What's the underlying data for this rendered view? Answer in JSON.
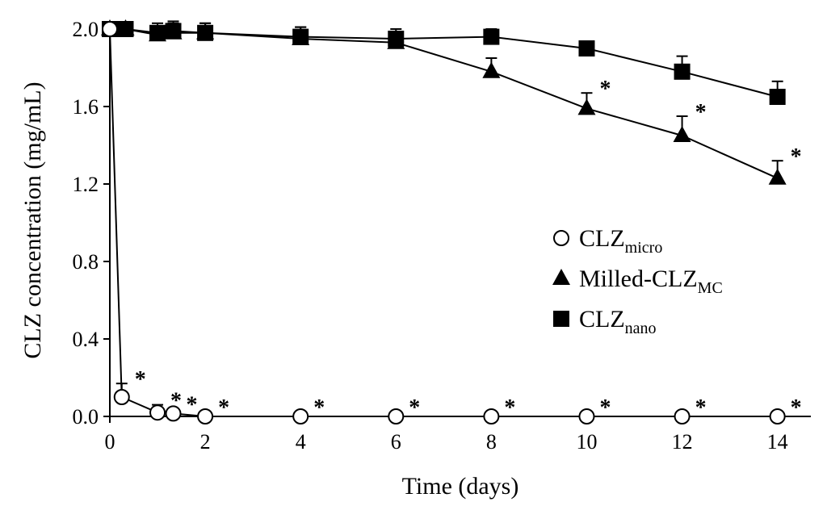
{
  "chart_data": {
    "type": "line",
    "title": "",
    "xlabel": "Time (days)",
    "ylabel": "CLZ concentration (mg/mL)",
    "xlim": [
      0,
      14.7
    ],
    "ylim": [
      0,
      2.0
    ],
    "xticks": [
      0,
      2,
      4,
      6,
      8,
      10,
      12,
      14
    ],
    "yticks": [
      0.0,
      0.4,
      0.8,
      1.2,
      1.6,
      2.0
    ],
    "ytick_labels": [
      "0.0",
      "0.4",
      "0.8",
      "1.2",
      "1.6",
      "2.0"
    ],
    "grid": false,
    "legend_position": "right-middle",
    "series": [
      {
        "name": "CLZ",
        "subscript": "micro",
        "marker": "circle-open",
        "x": [
          0,
          0.25,
          1,
          1.33,
          2,
          4,
          6,
          8,
          10,
          12,
          14
        ],
        "y": [
          2.0,
          0.1,
          0.02,
          0.015,
          0.0,
          0.0,
          0.0,
          0.0,
          0.0,
          0.0,
          0.0
        ],
        "error": [
          0,
          0.07,
          0.04,
          0,
          0,
          0,
          0,
          0,
          0,
          0,
          0
        ],
        "significant": [
          false,
          true,
          true,
          true,
          true,
          true,
          true,
          true,
          true,
          true,
          true
        ]
      },
      {
        "name": "Milled-CLZ",
        "subscript": "MC",
        "marker": "triangle-filled",
        "x": [
          0,
          0.33,
          1,
          1.33,
          2,
          4,
          6,
          8,
          10,
          12,
          14
        ],
        "y": [
          2.0,
          2.0,
          1.97,
          1.98,
          1.98,
          1.95,
          1.93,
          1.78,
          1.59,
          1.45,
          1.23
        ],
        "error": [
          0,
          0.02,
          0.04,
          0.05,
          0.05,
          0.06,
          0.05,
          0.07,
          0.08,
          0.1,
          0.09
        ],
        "significant": [
          false,
          false,
          false,
          false,
          false,
          false,
          false,
          false,
          true,
          true,
          true
        ]
      },
      {
        "name": "CLZ",
        "subscript": "nano",
        "marker": "square-filled",
        "x": [
          0,
          0.33,
          1,
          1.33,
          2,
          4,
          6,
          8,
          10,
          12,
          14
        ],
        "y": [
          2.0,
          2.0,
          1.98,
          1.99,
          1.98,
          1.96,
          1.95,
          1.96,
          1.9,
          1.78,
          1.65
        ],
        "error": [
          0,
          0.02,
          0.05,
          0.05,
          0.05,
          0.05,
          0.05,
          0.04,
          0.03,
          0.08,
          0.08
        ],
        "significant": [
          false,
          false,
          false,
          false,
          false,
          false,
          false,
          false,
          false,
          false,
          false
        ]
      }
    ],
    "significance_symbol": "*"
  }
}
